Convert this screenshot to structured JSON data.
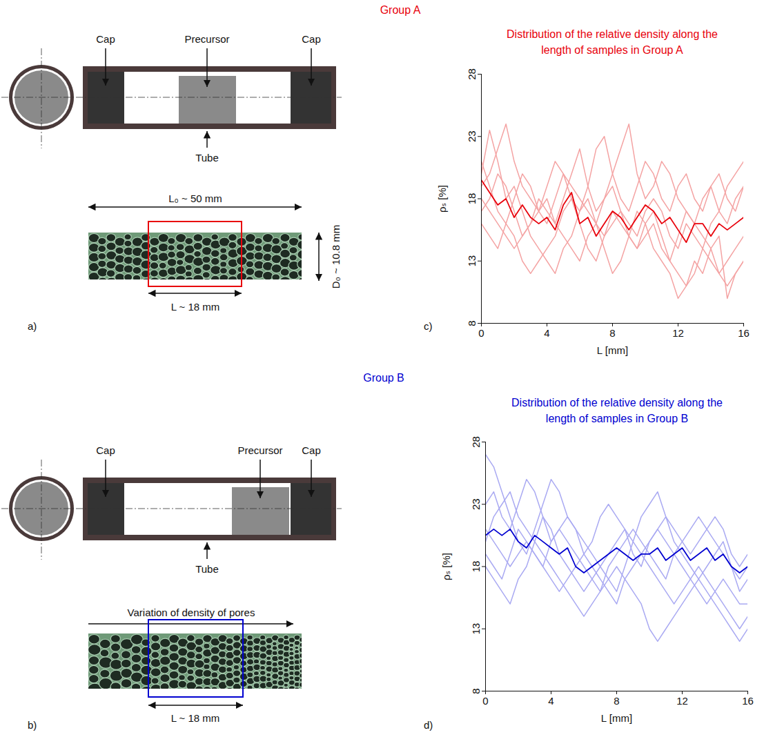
{
  "figure": {
    "groups": [
      {
        "heading": "Group A",
        "color": "#e8000b",
        "diagram": {
          "letter": "a)",
          "cap_left": "Cap",
          "precursor": "Precursor",
          "cap_right": "Cap",
          "tube": "Tube",
          "length_label": "L₀ ~ 50 mm",
          "diameter_label": "D₀ ~ 10.8 mm",
          "window_label": "L ~ 18 mm"
        }
      },
      {
        "heading": "Group B",
        "color": "#0000d0",
        "diagram": {
          "letter": "b)",
          "cap_left": "Cap",
          "precursor": "Precursor",
          "cap_right": "Cap",
          "tube": "Tube",
          "direction_label": "Variation of density of pores",
          "window_label": "L ~ 18 mm"
        }
      }
    ]
  },
  "chart_data": [
    {
      "type": "line",
      "panel_label": "c)",
      "title": "Distribution of the relative density along the length of samples in Group A",
      "x_label": "L [mm]",
      "y_label": "ρₛ [%]",
      "xlim": [
        0,
        16
      ],
      "xticks": [
        0,
        4,
        8,
        12,
        16
      ],
      "ylim": [
        8,
        28
      ],
      "yticks": [
        8,
        13,
        18,
        23,
        28
      ],
      "x": [
        0,
        0.5,
        1,
        1.5,
        2,
        2.5,
        3,
        3.5,
        4,
        4.5,
        5,
        5.5,
        6,
        6.5,
        7,
        7.5,
        8,
        8.5,
        9,
        9.5,
        10,
        10.5,
        11,
        11.5,
        12,
        12.5,
        13,
        13.5,
        14,
        14.5,
        15,
        15.5,
        16
      ],
      "series": [
        {
          "color": "#f4a3a3",
          "values": [
            20,
            23.5,
            21,
            18,
            19,
            17,
            15,
            14,
            13,
            12,
            14,
            15,
            17,
            18,
            16,
            15,
            17,
            16,
            15,
            14,
            16,
            17,
            15,
            13,
            12,
            11,
            12,
            14,
            16,
            17,
            19,
            20,
            21
          ]
        },
        {
          "color": "#f4a3a3",
          "values": [
            18,
            17,
            16,
            15,
            14,
            15,
            16,
            17,
            18,
            16,
            15,
            14,
            13,
            15,
            16,
            14,
            12,
            13,
            15,
            17,
            16,
            14,
            13,
            12,
            10,
            11,
            13,
            12,
            14,
            15,
            10,
            12,
            13
          ]
        },
        {
          "color": "#f4a3a3",
          "values": [
            21,
            19,
            17,
            16,
            18,
            20,
            19,
            17,
            16,
            18,
            20,
            19,
            18,
            17,
            16,
            18,
            19,
            17,
            16,
            15,
            17,
            18,
            17,
            15,
            14,
            16,
            15,
            14,
            13,
            12,
            13,
            14,
            15
          ]
        },
        {
          "color": "#f4a3a3",
          "values": [
            17,
            18,
            20,
            19,
            17,
            15,
            16,
            18,
            17,
            16,
            18,
            20,
            22,
            19,
            17,
            18,
            20,
            22,
            24,
            20,
            18,
            19,
            21,
            20,
            18,
            17,
            16,
            18,
            19,
            17,
            16,
            18,
            19
          ]
        },
        {
          "color": "#f4a3a3",
          "values": [
            16,
            15,
            14,
            16,
            15,
            13,
            12,
            13,
            14,
            15,
            17,
            18,
            16,
            14,
            13,
            15,
            16,
            17,
            15,
            14,
            15,
            16,
            14,
            13,
            15,
            17,
            16,
            15,
            14,
            12,
            11,
            12,
            13
          ]
        },
        {
          "color": "#f4a3a3",
          "values": [
            19,
            20,
            22,
            24,
            21,
            19,
            18,
            17,
            19,
            21,
            20,
            18,
            17,
            19,
            22,
            23,
            20,
            18,
            17,
            19,
            21,
            20,
            18,
            17,
            19,
            20,
            18,
            17,
            19,
            20,
            18,
            17,
            19
          ]
        },
        {
          "color": "#e8000b",
          "values": [
            19.5,
            18.5,
            17.5,
            18,
            16.5,
            17.5,
            16.5,
            16,
            16.5,
            15.5,
            17.5,
            18.5,
            16,
            16.5,
            15,
            16,
            17,
            16.5,
            15.5,
            16.5,
            17.5,
            17,
            16,
            16.5,
            15.5,
            14.5,
            16,
            16,
            15,
            16,
            15.5,
            16,
            16.5
          ]
        }
      ]
    },
    {
      "type": "line",
      "panel_label": "d)",
      "title": "Distribution of the relative density along the length of samples in Group B",
      "x_label": "L [mm]",
      "y_label": "ρₛ [%]",
      "xlim": [
        0,
        16
      ],
      "xticks": [
        0,
        4,
        8,
        12,
        16
      ],
      "ylim": [
        8,
        28
      ],
      "yticks": [
        8,
        13,
        18,
        23,
        28
      ],
      "x": [
        0,
        0.5,
        1,
        1.5,
        2,
        2.5,
        3,
        3.5,
        4,
        4.5,
        5,
        5.5,
        6,
        6.5,
        7,
        7.5,
        8,
        8.5,
        9,
        9.5,
        10,
        10.5,
        11,
        11.5,
        12,
        12.5,
        13,
        13.5,
        14,
        14.5,
        15,
        15.5,
        16
      ],
      "series": [
        {
          "color": "#a9a9f2",
          "values": [
            27,
            26,
            24,
            22,
            20,
            19,
            21,
            23,
            25,
            24,
            22,
            21,
            20,
            19,
            18,
            17,
            16,
            18,
            20,
            19,
            18,
            17,
            16,
            15,
            16,
            17,
            18,
            17,
            16,
            15,
            14,
            13,
            14
          ]
        },
        {
          "color": "#a9a9f2",
          "values": [
            20,
            22,
            23,
            24,
            22,
            21,
            20,
            19,
            18,
            17,
            16,
            15,
            14,
            15,
            16,
            17,
            18,
            17,
            16,
            15,
            13,
            12,
            13,
            14,
            15,
            16,
            17,
            16,
            15,
            14,
            13,
            12,
            13
          ]
        },
        {
          "color": "#a9a9f2",
          "values": [
            23,
            24,
            22,
            21,
            23,
            25,
            24,
            22,
            20,
            21,
            22,
            21,
            19,
            20,
            22,
            23,
            22,
            21,
            20,
            22,
            23,
            24,
            22,
            21,
            20,
            19,
            20,
            21,
            22,
            21,
            19,
            18,
            19
          ]
        },
        {
          "color": "#a9a9f2",
          "values": [
            18,
            17,
            16,
            15,
            17,
            18,
            20,
            22,
            21,
            19,
            18,
            17,
            16,
            17,
            18,
            19,
            20,
            21,
            19,
            18,
            20,
            21,
            20,
            19,
            18,
            17,
            16,
            15,
            16,
            17,
            16,
            15,
            15
          ]
        },
        {
          "color": "#a9a9f2",
          "values": [
            21,
            20,
            19,
            18,
            19,
            20,
            19,
            18,
            17,
            16,
            17,
            18,
            19,
            18,
            17,
            16,
            15,
            17,
            18,
            19,
            20,
            21,
            22,
            20,
            19,
            18,
            17,
            18,
            19,
            20,
            18,
            16,
            17
          ]
        },
        {
          "color": "#a9a9f2",
          "values": [
            19,
            18,
            17,
            19,
            21,
            20,
            19,
            18,
            20,
            21,
            20,
            19,
            18,
            17,
            16,
            18,
            19,
            20,
            21,
            20,
            19,
            18,
            17,
            19,
            20,
            21,
            22,
            21,
            20,
            19,
            18,
            17,
            18
          ]
        },
        {
          "color": "#0000d0",
          "values": [
            20.5,
            21,
            20.5,
            21,
            20,
            19.5,
            20.5,
            20,
            19.5,
            19,
            19.5,
            18,
            17.5,
            18,
            18.5,
            19,
            19.5,
            19,
            18.5,
            19,
            19,
            19.5,
            18.5,
            19,
            19.5,
            18.5,
            19,
            19.5,
            18.5,
            19,
            18,
            17.5,
            18
          ]
        }
      ]
    }
  ]
}
